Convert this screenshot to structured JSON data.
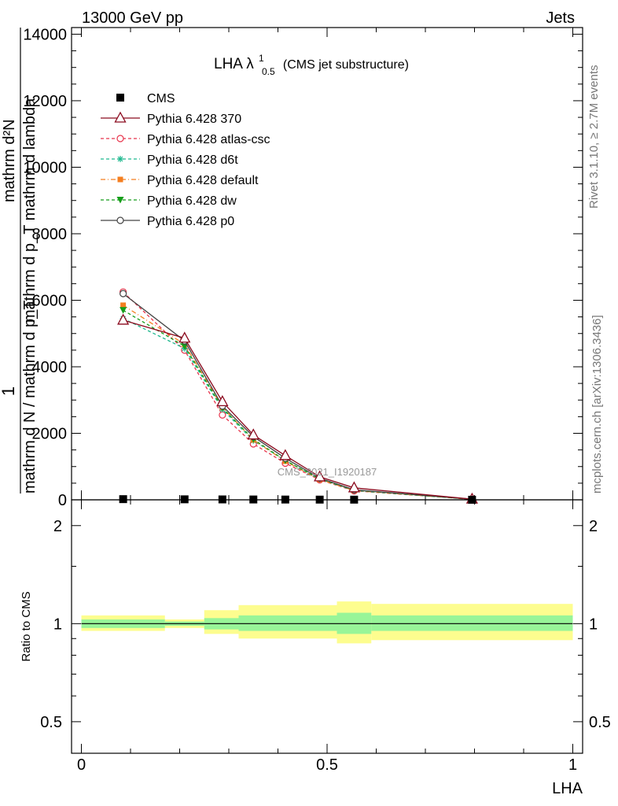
{
  "header": {
    "left": "13000 GeV pp",
    "right": "Jets"
  },
  "side": {
    "rivet": "Rivet 3.1.10, ≥ 2.7M events",
    "mcplots": "mcplots.cern.ch [arXiv:1306.3436]"
  },
  "chart_data": [
    {
      "type": "line",
      "title_main": "LHA λ",
      "title_sup": "1",
      "title_sub": "0.5",
      "title_suffix": "(CMS jet substructure)",
      "ylabel_numerator": "mathrm d²N",
      "ylabel_denominator": "mathrm d p_T mathrm d lambda",
      "ylabel_prefix": "1",
      "ylabel_prefix_den": "mathrm d N / mathrm d p_T",
      "watermark": "CMS_2021_I1920187",
      "ylim": [
        0,
        14200
      ],
      "yticks": [
        0,
        2000,
        4000,
        6000,
        8000,
        10000,
        12000,
        14000
      ],
      "ytick_labels": [
        "0",
        "2000",
        "4000",
        "6000",
        "8000",
        "10000",
        "12000",
        "14000"
      ],
      "xlim": [
        -0.02,
        1.02
      ],
      "x": [
        0.085,
        0.21,
        0.287,
        0.35,
        0.415,
        0.485,
        0.555,
        0.795
      ],
      "series": [
        {
          "name": "CMS",
          "color": "#000000",
          "marker": "square",
          "dash": "none",
          "values": [
            20,
            15,
            12,
            10,
            8,
            6,
            5,
            2
          ]
        },
        {
          "name": "Pythia 6.428 370",
          "color": "#8b0a1e",
          "marker": "triangle-open",
          "dash": "none",
          "values": [
            5400,
            4860,
            2950,
            1950,
            1330,
            690,
            360,
            20
          ]
        },
        {
          "name": "Pythia 6.428 atlas-csc",
          "color": "#e8344c",
          "marker": "circle-open",
          "dash": "4,3",
          "values": [
            6250,
            4500,
            2550,
            1680,
            1100,
            600,
            270,
            15
          ]
        },
        {
          "name": "Pythia 6.428 d6t",
          "color": "#1fb98f",
          "marker": "star",
          "dash": "4,3",
          "values": [
            5450,
            4550,
            2720,
            1780,
            1180,
            620,
            280,
            15
          ]
        },
        {
          "name": "Pythia 6.428 default",
          "color": "#f47f20",
          "marker": "square-filled",
          "dash": "6,3,1,3",
          "values": [
            5850,
            4680,
            2780,
            1800,
            1160,
            610,
            280,
            15
          ]
        },
        {
          "name": "Pythia 6.428 dw",
          "color": "#169e1a",
          "marker": "triangle-down-filled",
          "dash": "4,3",
          "values": [
            5700,
            4620,
            2760,
            1820,
            1180,
            630,
            290,
            15
          ]
        },
        {
          "name": "Pythia 6.428 p0",
          "color": "#444444",
          "marker": "circle-open",
          "dash": "none",
          "values": [
            6200,
            4780,
            2820,
            1900,
            1250,
            650,
            300,
            18
          ]
        }
      ]
    },
    {
      "type": "area",
      "ylabel": "Ratio to CMS",
      "xlabel": "LHA",
      "ylim": [
        0.4,
        2.4
      ],
      "log_y": true,
      "yticks": [
        0.5,
        1,
        2
      ],
      "ytick_labels": [
        "0.5",
        "1",
        "2"
      ],
      "xticks": [
        0,
        0.5,
        1
      ],
      "xtick_labels": [
        "0",
        "0.5",
        "1"
      ],
      "bins": [
        {
          "x0": 0.0,
          "x1": 0.17,
          "inner": [
            0.97,
            1.03
          ],
          "outer": [
            0.95,
            1.06
          ]
        },
        {
          "x0": 0.17,
          "x1": 0.25,
          "inner": [
            0.985,
            1.015
          ],
          "outer": [
            0.97,
            1.03
          ]
        },
        {
          "x0": 0.25,
          "x1": 0.32,
          "inner": [
            0.96,
            1.04
          ],
          "outer": [
            0.93,
            1.1
          ]
        },
        {
          "x0": 0.32,
          "x1": 0.52,
          "inner": [
            0.95,
            1.06
          ],
          "outer": [
            0.9,
            1.14
          ]
        },
        {
          "x0": 0.52,
          "x1": 0.59,
          "inner": [
            0.93,
            1.08
          ],
          "outer": [
            0.87,
            1.17
          ]
        },
        {
          "x0": 0.59,
          "x1": 1.0,
          "inner": [
            0.95,
            1.06
          ],
          "outer": [
            0.89,
            1.15
          ]
        }
      ]
    }
  ]
}
